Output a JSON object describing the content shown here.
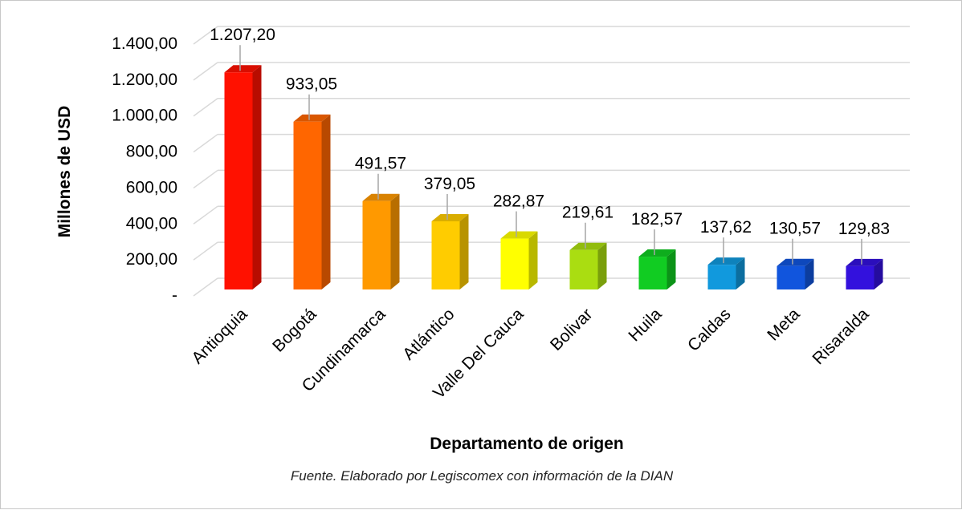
{
  "chart_data": {
    "type": "bar",
    "categories": [
      "Antioquia",
      "Bogotá",
      "Cundinamarca",
      "Atlántico",
      "Valle Del Cauca",
      "Bolivar",
      "Huila",
      "Caldas",
      "Meta",
      "Risaralda"
    ],
    "values": [
      1207.2,
      933.05,
      491.57,
      379.05,
      282.87,
      219.61,
      182.57,
      137.62,
      130.57,
      129.83
    ],
    "value_labels": [
      "1.207,20",
      "933,05",
      "491,57",
      "379,05",
      "282,87",
      "219,61",
      "182,57",
      "137,62",
      "130,57",
      "129,83"
    ],
    "colors": [
      "#ff1100",
      "#ff6600",
      "#ff9900",
      "#ffcc00",
      "#ffff00",
      "#aadd11",
      "#11cc22",
      "#1199dd",
      "#1155dd",
      "#3311dd"
    ],
    "ylim": [
      0,
      1400
    ],
    "yticks": [
      {
        "value": 0,
        "label": "-"
      },
      {
        "value": 200,
        "label": "200,00"
      },
      {
        "value": 400,
        "label": "400,00"
      },
      {
        "value": 600,
        "label": "600,00"
      },
      {
        "value": 800,
        "label": "800,00"
      },
      {
        "value": 1000,
        "label": "1.000,00"
      },
      {
        "value": 1200,
        "label": "1.200,00"
      },
      {
        "value": 1400,
        "label": "1.400,00"
      }
    ],
    "ylabel": "Millones de USD",
    "xlabel": "Departamento de origen",
    "grid": true,
    "legend": false
  },
  "footnote": "Fuente. Elaborado por Legiscomex con información de la DIAN"
}
